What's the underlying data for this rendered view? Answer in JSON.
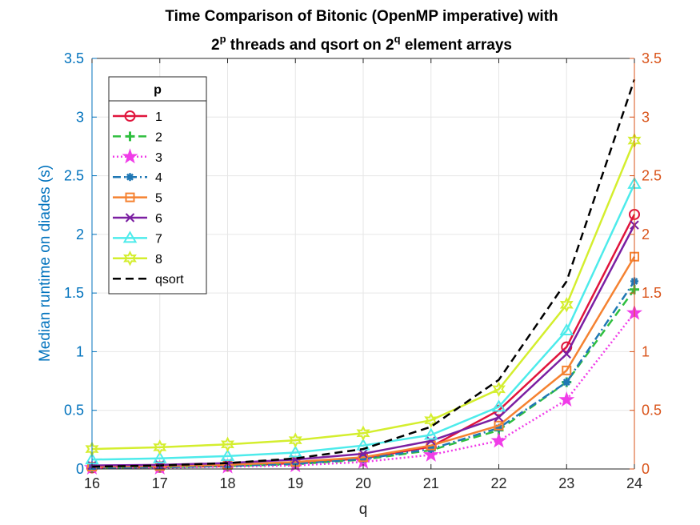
{
  "chart_data": {
    "type": "line",
    "title_line1": "Time Comparison of Bitonic (OpenMP imperative) with",
    "title_line2": {
      "a": "2",
      "p": "p",
      "b": " threads and qsort on 2",
      "q": "q",
      "c": " element arrays"
    },
    "xlabel": "q",
    "ylabel": "Median runtime on diades (s)",
    "x": [
      16,
      17,
      18,
      19,
      20,
      21,
      22,
      23,
      24
    ],
    "xlim": [
      16,
      24
    ],
    "ylim": [
      0,
      3.5
    ],
    "yticks": [
      "0",
      "0.5",
      "1",
      "1.5",
      "2",
      "2.5",
      "3",
      "3.5"
    ],
    "xticks": [
      "16",
      "17",
      "18",
      "19",
      "20",
      "21",
      "22",
      "23",
      "24"
    ],
    "right_yticks": [
      "0",
      "0.5",
      "1",
      "1.5",
      "2",
      "2.5",
      "3",
      "3.5"
    ],
    "grid": true,
    "legend_title": "p",
    "legend_position": "top-left",
    "colors": {
      "left_axis": "#0072BD",
      "right_axis": "#D95319",
      "grid": "#e6e6e6"
    },
    "series": [
      {
        "name": "1",
        "values": [
          0.01,
          0.015,
          0.025,
          0.05,
          0.09,
          0.19,
          0.5,
          1.04,
          2.17
        ],
        "color": "#E0143C",
        "dash": "solid",
        "marker": "circle"
      },
      {
        "name": "2",
        "values": [
          0.01,
          0.015,
          0.025,
          0.04,
          0.08,
          0.16,
          0.33,
          0.74,
          1.53
        ],
        "color": "#2FBF3F",
        "dash": "dashed",
        "marker": "plus"
      },
      {
        "name": "3",
        "values": [
          0.01,
          0.01,
          0.02,
          0.03,
          0.06,
          0.12,
          0.24,
          0.59,
          1.33
        ],
        "color": "#F03CE8",
        "dash": "dotted",
        "marker": "star"
      },
      {
        "name": "4",
        "values": [
          0.01,
          0.015,
          0.025,
          0.045,
          0.085,
          0.17,
          0.35,
          0.74,
          1.6
        ],
        "color": "#1F77B4",
        "dash": "dashdot",
        "marker": "asterisk"
      },
      {
        "name": "5",
        "values": [
          0.02,
          0.025,
          0.035,
          0.06,
          0.1,
          0.2,
          0.37,
          0.84,
          1.81
        ],
        "color": "#F58231",
        "dash": "solid",
        "marker": "square"
      },
      {
        "name": "6",
        "values": [
          0.03,
          0.035,
          0.05,
          0.08,
          0.13,
          0.24,
          0.44,
          0.98,
          2.08
        ],
        "color": "#7B1FA2",
        "dash": "solid",
        "marker": "x"
      },
      {
        "name": "7",
        "values": [
          0.08,
          0.09,
          0.11,
          0.14,
          0.2,
          0.29,
          0.53,
          1.18,
          2.43
        ],
        "color": "#4DEBEB",
        "dash": "solid",
        "marker": "triangle"
      },
      {
        "name": "8",
        "values": [
          0.17,
          0.185,
          0.21,
          0.245,
          0.305,
          0.415,
          0.68,
          1.4,
          2.8
        ],
        "color": "#D4EE2E",
        "dash": "solid",
        "marker": "hexagram"
      },
      {
        "name": "qsort",
        "values": [
          0.02,
          0.03,
          0.05,
          0.09,
          0.17,
          0.36,
          0.76,
          1.6,
          3.32
        ],
        "color": "#000000",
        "dash": "dashed",
        "marker": "none"
      }
    ]
  }
}
